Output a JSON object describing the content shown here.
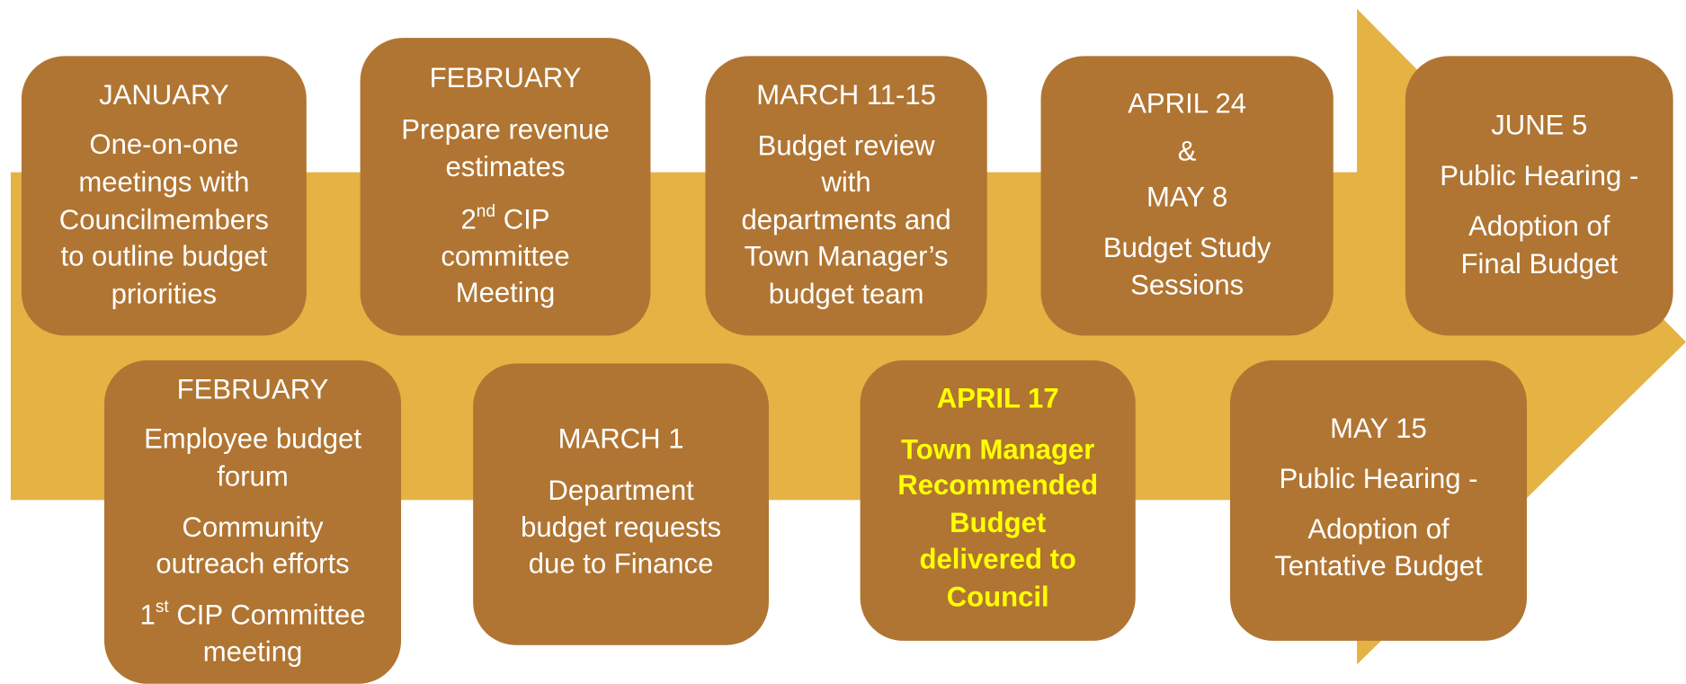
{
  "nodes": [
    {
      "lines": [
        "JANUARY",
        "One-on-one",
        "meetings with",
        "Councilmembers",
        "to outline budget",
        "priorities"
      ]
    },
    {
      "lines": [
        "FEBRUARY",
        "Prepare revenue",
        "estimates",
        {
          "pre": "2",
          "sup": "nd",
          "post": " CIP"
        },
        "committee",
        "Meeting"
      ]
    },
    {
      "lines": [
        "MARCH 11-15",
        "Budget review",
        "with",
        "departments and",
        "Town Manager’s",
        "budget team"
      ]
    },
    {
      "lines": [
        "APRIL 24",
        "&",
        "MAY 8",
        "Budget Study",
        "Sessions"
      ]
    },
    {
      "lines": [
        "JUNE 5",
        "Public Hearing -",
        "Adoption of",
        "Final Budget"
      ]
    },
    {
      "lines": [
        "FEBRUARY",
        "Employee budget",
        "forum",
        "Community",
        "outreach efforts",
        {
          "pre": "1",
          "sup": "st",
          "post": " CIP Committee"
        },
        "meeting"
      ]
    },
    {
      "lines": [
        "MARCH 1",
        "Department",
        "budget requests",
        "due to Finance"
      ]
    },
    {
      "lines": [
        "APRIL 17",
        "Town Manager",
        "Recommended",
        "Budget",
        "delivered to",
        "Council"
      ]
    },
    {
      "lines": [
        "MAY 15",
        "Public Hearing -",
        "Adoption of",
        "Tentative Budget"
      ]
    }
  ]
}
